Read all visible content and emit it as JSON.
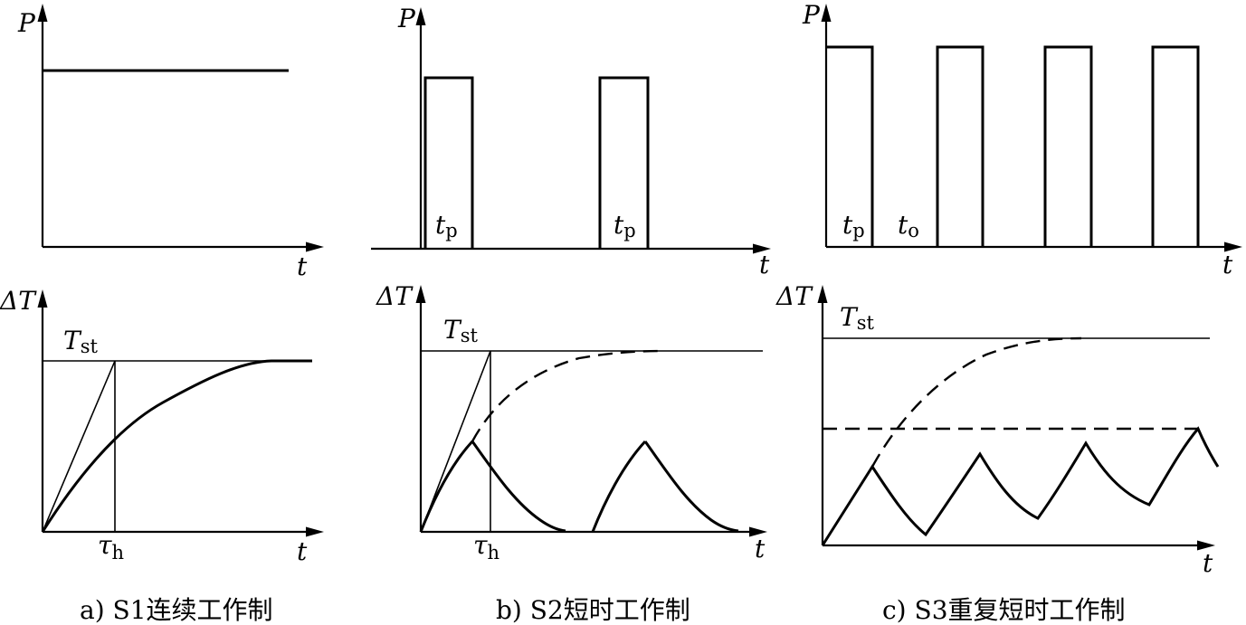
{
  "axis_labels": {
    "p": "P",
    "delta_t": "ΔT",
    "t": "t"
  },
  "annotations": {
    "t_letter": "t",
    "sub_p": "p",
    "sub_o": "o",
    "T_letter": "T",
    "sub_st": "st",
    "tau_letter": "τ",
    "sub_h": "h"
  },
  "captions": {
    "a": "a) S1连续工作制",
    "b": "b) S2短时工作制",
    "c": "c) S3重复短时工作制"
  }
}
